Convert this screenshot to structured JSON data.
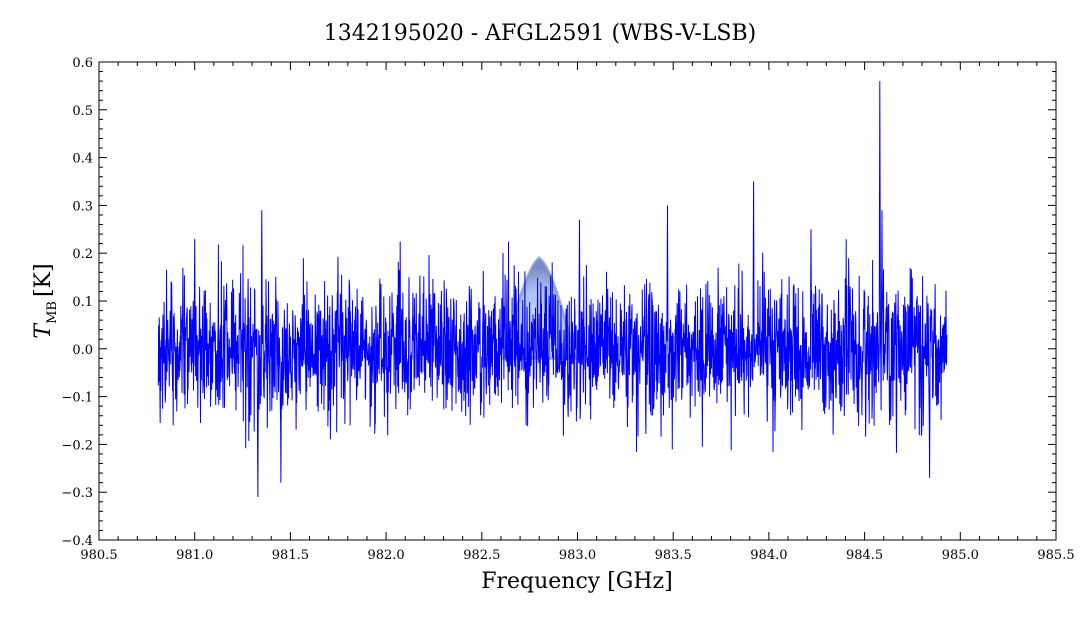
{
  "chart_data": {
    "type": "line",
    "title": "1342195020 - AFGL2591 (WBS-V-LSB)",
    "xlabel": "Frequency [GHz]",
    "ylabel_main": "T",
    "ylabel_sub": "MB",
    "ylabel_unit": "[K]",
    "xlim": [
      980.5,
      985.5
    ],
    "ylim": [
      -0.4,
      0.6
    ],
    "x_ticks": [
      "980.5",
      "981.0",
      "981.5",
      "982.0",
      "982.5",
      "983.0",
      "983.5",
      "984.0",
      "984.5",
      "985.0",
      "985.5"
    ],
    "y_ticks": [
      "-0.4",
      "-0.3",
      "-0.2",
      "-0.1",
      "0.0",
      "0.1",
      "0.2",
      "0.3",
      "0.4",
      "0.5",
      "0.6"
    ],
    "grid": false,
    "line_color": "#0000ff",
    "frequency_range": [
      980.81,
      984.93
    ],
    "noise_rms": 0.07,
    "peaks": [
      {
        "x": 981.0,
        "y": 0.23
      },
      {
        "x": 981.35,
        "y": 0.29
      },
      {
        "x": 981.33,
        "y": -0.31
      },
      {
        "x": 981.45,
        "y": -0.28
      },
      {
        "x": 983.01,
        "y": 0.27
      },
      {
        "x": 983.47,
        "y": 0.3
      },
      {
        "x": 983.92,
        "y": 0.35
      },
      {
        "x": 984.22,
        "y": 0.25
      },
      {
        "x": 984.58,
        "y": 0.56
      },
      {
        "x": 984.59,
        "y": 0.29
      },
      {
        "x": 984.84,
        "y": -0.27
      }
    ],
    "overlay_marker": {
      "x": 982.8,
      "y_top": 0.19,
      "color": "#4f7ee0"
    }
  }
}
